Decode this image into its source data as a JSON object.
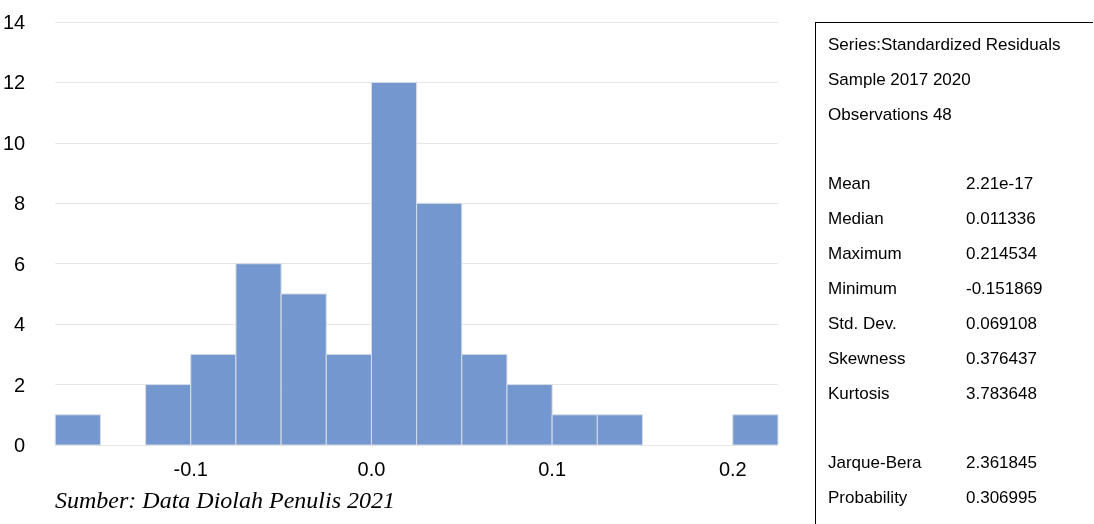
{
  "chart_data": {
    "type": "histogram",
    "bins": [
      -0.175,
      -0.15,
      -0.125,
      -0.1,
      -0.075,
      -0.05,
      -0.025,
      0,
      0.025,
      0.05,
      0.075,
      0.1,
      0.125,
      0.15,
      0.175,
      0.2,
      0.225
    ],
    "values": [
      1,
      0,
      2,
      3,
      6,
      5,
      3,
      12,
      8,
      3,
      2,
      1,
      1,
      0,
      0,
      1
    ],
    "color": "#7497cf",
    "xlim": [
      -0.175,
      0.225
    ],
    "xticks": [
      -0.1,
      {
        "value": 0,
        "label": "0.0"
      },
      0.1,
      0.2
    ],
    "ylim": [
      0,
      14
    ],
    "yticks": [
      0,
      2,
      4,
      6,
      8,
      10,
      12,
      14
    ],
    "grid": "y",
    "annotations": [
      "Series:Standardized Residuals",
      "Sample 2017 2020",
      "Observations 48",
      "Mean 2.21e-17",
      "Median 0.011336",
      "Maximum 0.214534",
      "Minimum -0.151869",
      "Std. Dev. 0.069108",
      "Skewness 0.376437",
      "Kurtosis 3.783648",
      "Jarque-Bera 2.361845",
      "Probability 0.306995",
      "Sumber: Data Diolah Penulis 2021"
    ]
  }
}
